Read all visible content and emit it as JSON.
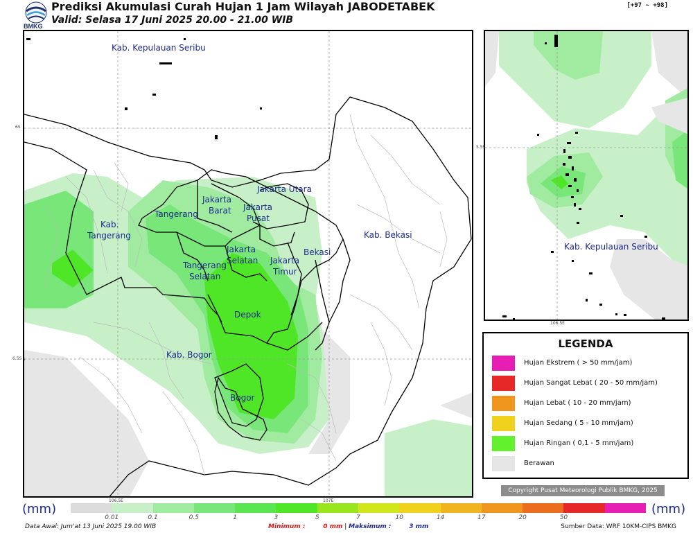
{
  "header": {
    "logo_text": "BMKG",
    "title": "Prediksi Akumulasi Curah Hujan 1 Jam Wilayah JABODETABEK",
    "valid": "Valid: Selasa 17 Juni 2025 20.00 - 21.00 WIB",
    "code": "[+97 ~ +98]"
  },
  "main_map": {
    "labels": {
      "kepulauan_seribu": "Kab. Kepulauan Seribu",
      "kab_tangerang_1": "Kab.",
      "kab_tangerang_2": "Tangerang",
      "tangerang": "Tangerang",
      "jakarta_barat_1": "Jakarta",
      "jakarta_barat_2": "Barat",
      "jakarta_utara": "Jakarta Utara",
      "jakarta_pusat_1": "Jakarta",
      "jakarta_pusat_2": "Pusat",
      "jakarta_selatan_1": "Jakarta",
      "jakarta_selatan_2": "Selatan",
      "tangerang_selatan_1": "Tangerang",
      "tangerang_selatan_2": "Selatan",
      "jakarta_timur_1": "Jakarta",
      "jakarta_timur_2": "Timur",
      "bekasi": "Bekasi",
      "kab_bekasi": "Kab. Bekasi",
      "depok": "Depok",
      "kab_bogor": "Kab. Bogor",
      "bogor": "Bogor"
    },
    "ticks": {
      "lat_top": "6S",
      "lat_bottom": "6.5S",
      "lon_left": "106.5E",
      "lon_right": "107E"
    }
  },
  "inset_map": {
    "label": "Kab. Kepulauan Seribu",
    "ticks": {
      "lat": "5.5S",
      "lon": "106.5E"
    }
  },
  "legend": {
    "title": "LEGENDA",
    "items": [
      {
        "label": "Hujan Ekstrem ( > 50 mm/jam)",
        "color": "#e61eb4"
      },
      {
        "label": "Hujan Sangat Lebat ( 20 - 50 mm/jam)",
        "color": "#e62828"
      },
      {
        "label": "Hujan Lebat ( 10 - 20 mm/jam)",
        "color": "#f0961e"
      },
      {
        "label": "Hujan Sedang ( 5 - 10 mm/jam)",
        "color": "#f0d21e"
      },
      {
        "label": "Hujan Ringan ( 0,1 - 5 mm/jam)",
        "color": "#64f02d"
      },
      {
        "label": "Berawan",
        "color": "#e6e6e6"
      }
    ]
  },
  "copyright": "Copyright Pusat Meteorologi Publik BMKG, 2025",
  "scale": {
    "unit_left": "(mm)",
    "unit_right": "(mm)",
    "colors": [
      "#dcdcdc",
      "#c8f0c8",
      "#a0eba0",
      "#78e678",
      "#5ae650",
      "#50e628",
      "#9ae61e",
      "#d2e61e",
      "#f0d21e",
      "#f0b41e",
      "#f0961e",
      "#eb6e1e",
      "#e62828",
      "#e61eb4"
    ],
    "labels": [
      "0.01",
      "0.1",
      "0.5",
      "1",
      "3",
      "5",
      "7",
      "10",
      "14",
      "17",
      "20",
      "50"
    ]
  },
  "footer": {
    "data_awal": "Data Awal: Jum'at 13 Juni 2025 19.00 WIB",
    "minimum_label": "Minimum :",
    "minimum_value": "0 mm",
    "separator": "|",
    "maksimum_label": "Maksimum :",
    "maksimum_value": "3 mm",
    "sumber": "Sumber Data: WRF 10KM-CIPS BMKG"
  }
}
